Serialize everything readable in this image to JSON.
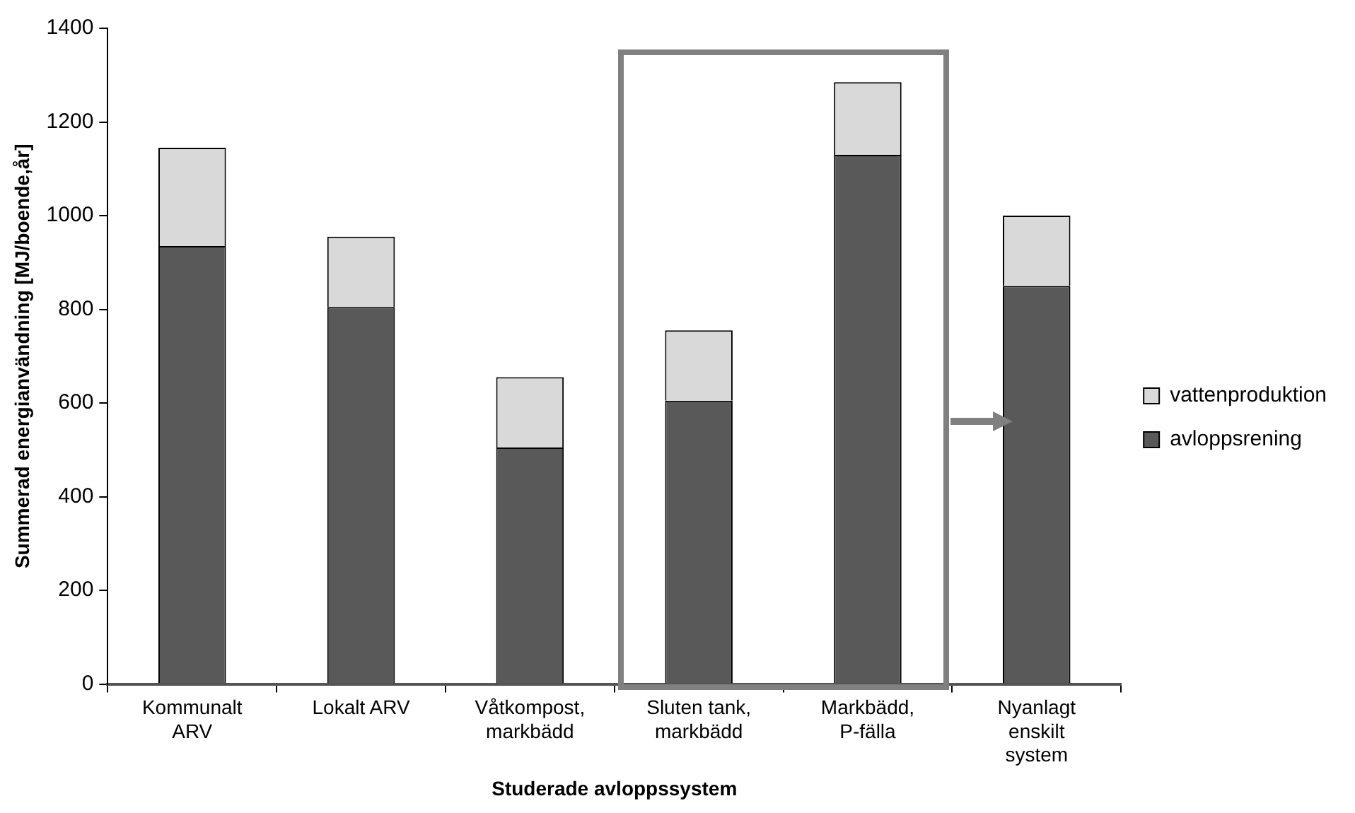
{
  "chart_data": {
    "type": "bar",
    "stacked": true,
    "xlabel": "Studerade avloppssystem",
    "ylabel": "Summerad energianvändning [MJ/boende,år]",
    "categories": [
      "Kommunalt ARV",
      "Lokalt ARV",
      "Våtkompost, markbädd",
      "Sluten tank, markbädd",
      "Markbädd, P-fälla",
      "Nyanlagt enskilt system"
    ],
    "series": [
      {
        "name": "avloppsrening",
        "color": "#595959",
        "values": [
          935,
          805,
          505,
          605,
          1130,
          850
        ]
      },
      {
        "name": "vattenproduktion",
        "color": "#d9d9d9",
        "values": [
          210,
          150,
          150,
          150,
          155,
          150
        ]
      }
    ],
    "ylim": [
      0,
      1400
    ],
    "yticks": [
      0,
      200,
      400,
      600,
      800,
      1000,
      1200,
      1400
    ],
    "grid": false,
    "legend": "right"
  }
}
